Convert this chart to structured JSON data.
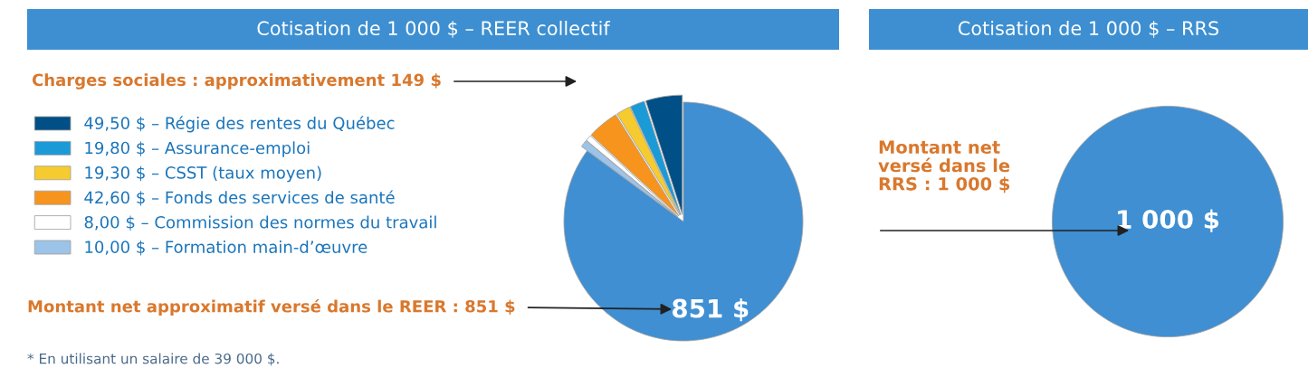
{
  "chart_data": [
    {
      "type": "pie",
      "title": "Cotisation de 1 000 $ – REER collectif",
      "legend": "left",
      "categories": [
        "49,50 $ – Régie des rentes du Québec",
        "19,80 $ – Assurance-emploi",
        "19,30 $ – CSST (taux moyen)",
        "42,60 $ – Fonds des services de santé",
        "8,00 $ – Commission des normes du travail",
        "10,00 $ – Formation main-d’œuvre",
        null
      ],
      "values": [
        49.5,
        19.8,
        19.3,
        42.6,
        8.0,
        10.0,
        851
      ],
      "value_labels": [
        null,
        null,
        null,
        null,
        null,
        null,
        "851 $"
      ],
      "colors": [
        "#004f86",
        "#1b9ad8",
        "#f6cb2f",
        "#f7941d",
        "#ffffff",
        "#9cc3e8",
        "#3f8fd2"
      ],
      "annotations": [
        "Charges sociales : approximativement 149 $",
        "Montant net approximatif versé dans le REER : 851 $",
        "* En utilisant un salaire de 39 000 $."
      ]
    },
    {
      "type": "pie",
      "title": "Cotisation de 1 000 $ – RRS",
      "categories": [
        null
      ],
      "values": [
        1000
      ],
      "value_labels": [
        "1 000 $"
      ],
      "colors": [
        "#3f8fd2"
      ],
      "annotations": [
        "Montant net\nversé dans le\nRRS : 1 000 $"
      ]
    }
  ]
}
